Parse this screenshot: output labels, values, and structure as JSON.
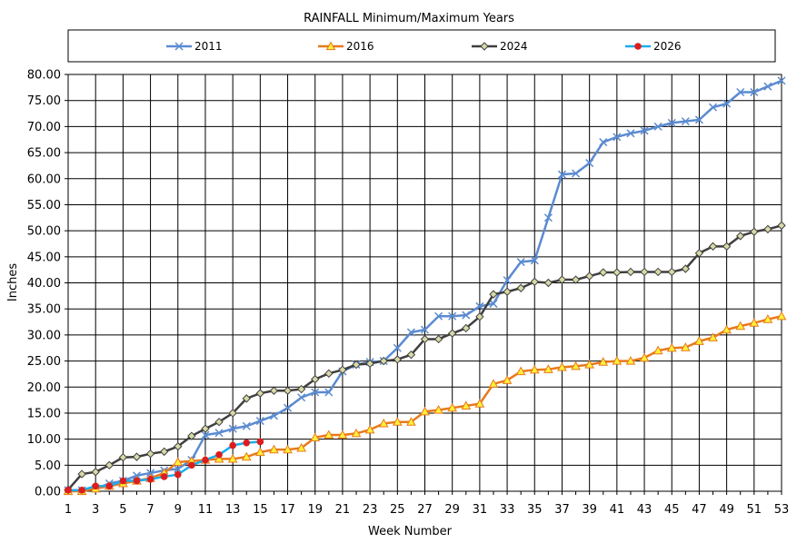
{
  "chart_data": {
    "type": "line",
    "title": "RAINFALL Minimum/Maximum Years",
    "xlabel": "Week Number",
    "ylabel": "Inches",
    "xlim": [
      1,
      53
    ],
    "ylim": [
      0,
      80
    ],
    "x_ticks": [
      1,
      3,
      5,
      7,
      9,
      11,
      13,
      15,
      17,
      19,
      21,
      23,
      25,
      27,
      29,
      31,
      33,
      35,
      37,
      39,
      41,
      43,
      45,
      47,
      49,
      51,
      53
    ],
    "y_ticks": [
      "0.00",
      "5.00",
      "10.00",
      "15.00",
      "20.00",
      "25.00",
      "30.00",
      "35.00",
      "40.00",
      "45.00",
      "50.00",
      "55.00",
      "60.00",
      "65.00",
      "70.00",
      "75.00",
      "80.00"
    ],
    "grid": true,
    "legend_position": "top",
    "series": [
      {
        "name": "2011",
        "color": "#5b8bd0",
        "marker": "x",
        "values": [
          0.2,
          0.2,
          0.5,
          1.5,
          2.0,
          3.0,
          3.5,
          4.0,
          4.3,
          6.0,
          10.8,
          11.2,
          12.0,
          12.5,
          13.5,
          14.5,
          16.0,
          18.0,
          19.0,
          19.0,
          23.0,
          24.3,
          24.8,
          25.0,
          27.5,
          30.5,
          31.0,
          33.6,
          33.6,
          33.8,
          35.5,
          36.0,
          40.5,
          44.0,
          44.3,
          52.5,
          60.8,
          61.0,
          63.0,
          67.0,
          68.0,
          68.7,
          69.2,
          70.0,
          70.7,
          71.0,
          71.3,
          73.7,
          74.4,
          76.6,
          76.6,
          77.7,
          78.8
        ]
      },
      {
        "name": "2016",
        "color": "#e8791b",
        "marker": "triangle",
        "values": [
          0.0,
          0.0,
          0.5,
          1.0,
          1.5,
          2.0,
          2.5,
          3.5,
          5.6,
          5.8,
          6.0,
          6.2,
          6.2,
          6.6,
          7.5,
          8.0,
          8.0,
          8.3,
          10.3,
          10.8,
          10.8,
          11.1,
          11.8,
          13.0,
          13.3,
          13.3,
          15.3,
          15.6,
          16.0,
          16.4,
          16.8,
          20.6,
          21.3,
          23.0,
          23.3,
          23.4,
          23.8,
          24.0,
          24.3,
          24.8,
          25.0,
          25.0,
          25.6,
          27.0,
          27.5,
          27.6,
          28.8,
          29.5,
          31.0,
          31.7,
          32.3,
          33.0,
          33.6
        ]
      },
      {
        "name": "2024",
        "color": "#3f3f3f",
        "marker": "diamond",
        "values": [
          0.3,
          3.3,
          3.7,
          5.0,
          6.5,
          6.6,
          7.2,
          7.6,
          8.6,
          10.6,
          12.0,
          13.3,
          15.0,
          17.8,
          18.8,
          19.3,
          19.3,
          19.6,
          21.5,
          22.6,
          23.3,
          24.3,
          24.5,
          25.0,
          25.3,
          26.2,
          29.2,
          29.2,
          30.3,
          31.3,
          33.5,
          37.8,
          38.3,
          39.0,
          40.2,
          40.0,
          40.6,
          40.6,
          41.3,
          42.0,
          42.0,
          42.1,
          42.1,
          42.1,
          42.1,
          42.7,
          45.7,
          47.0,
          47.0,
          49.0,
          49.8,
          50.3,
          51.0
        ]
      },
      {
        "name": "2026",
        "color": "#1aaeea",
        "marker": "circle",
        "marker_color": "#dd1d1d",
        "values": [
          0.2,
          0.2,
          1.0,
          1.0,
          2.0,
          2.0,
          2.3,
          2.8,
          3.2,
          5.0,
          6.0,
          7.0,
          8.8,
          9.3,
          9.5
        ]
      }
    ]
  }
}
